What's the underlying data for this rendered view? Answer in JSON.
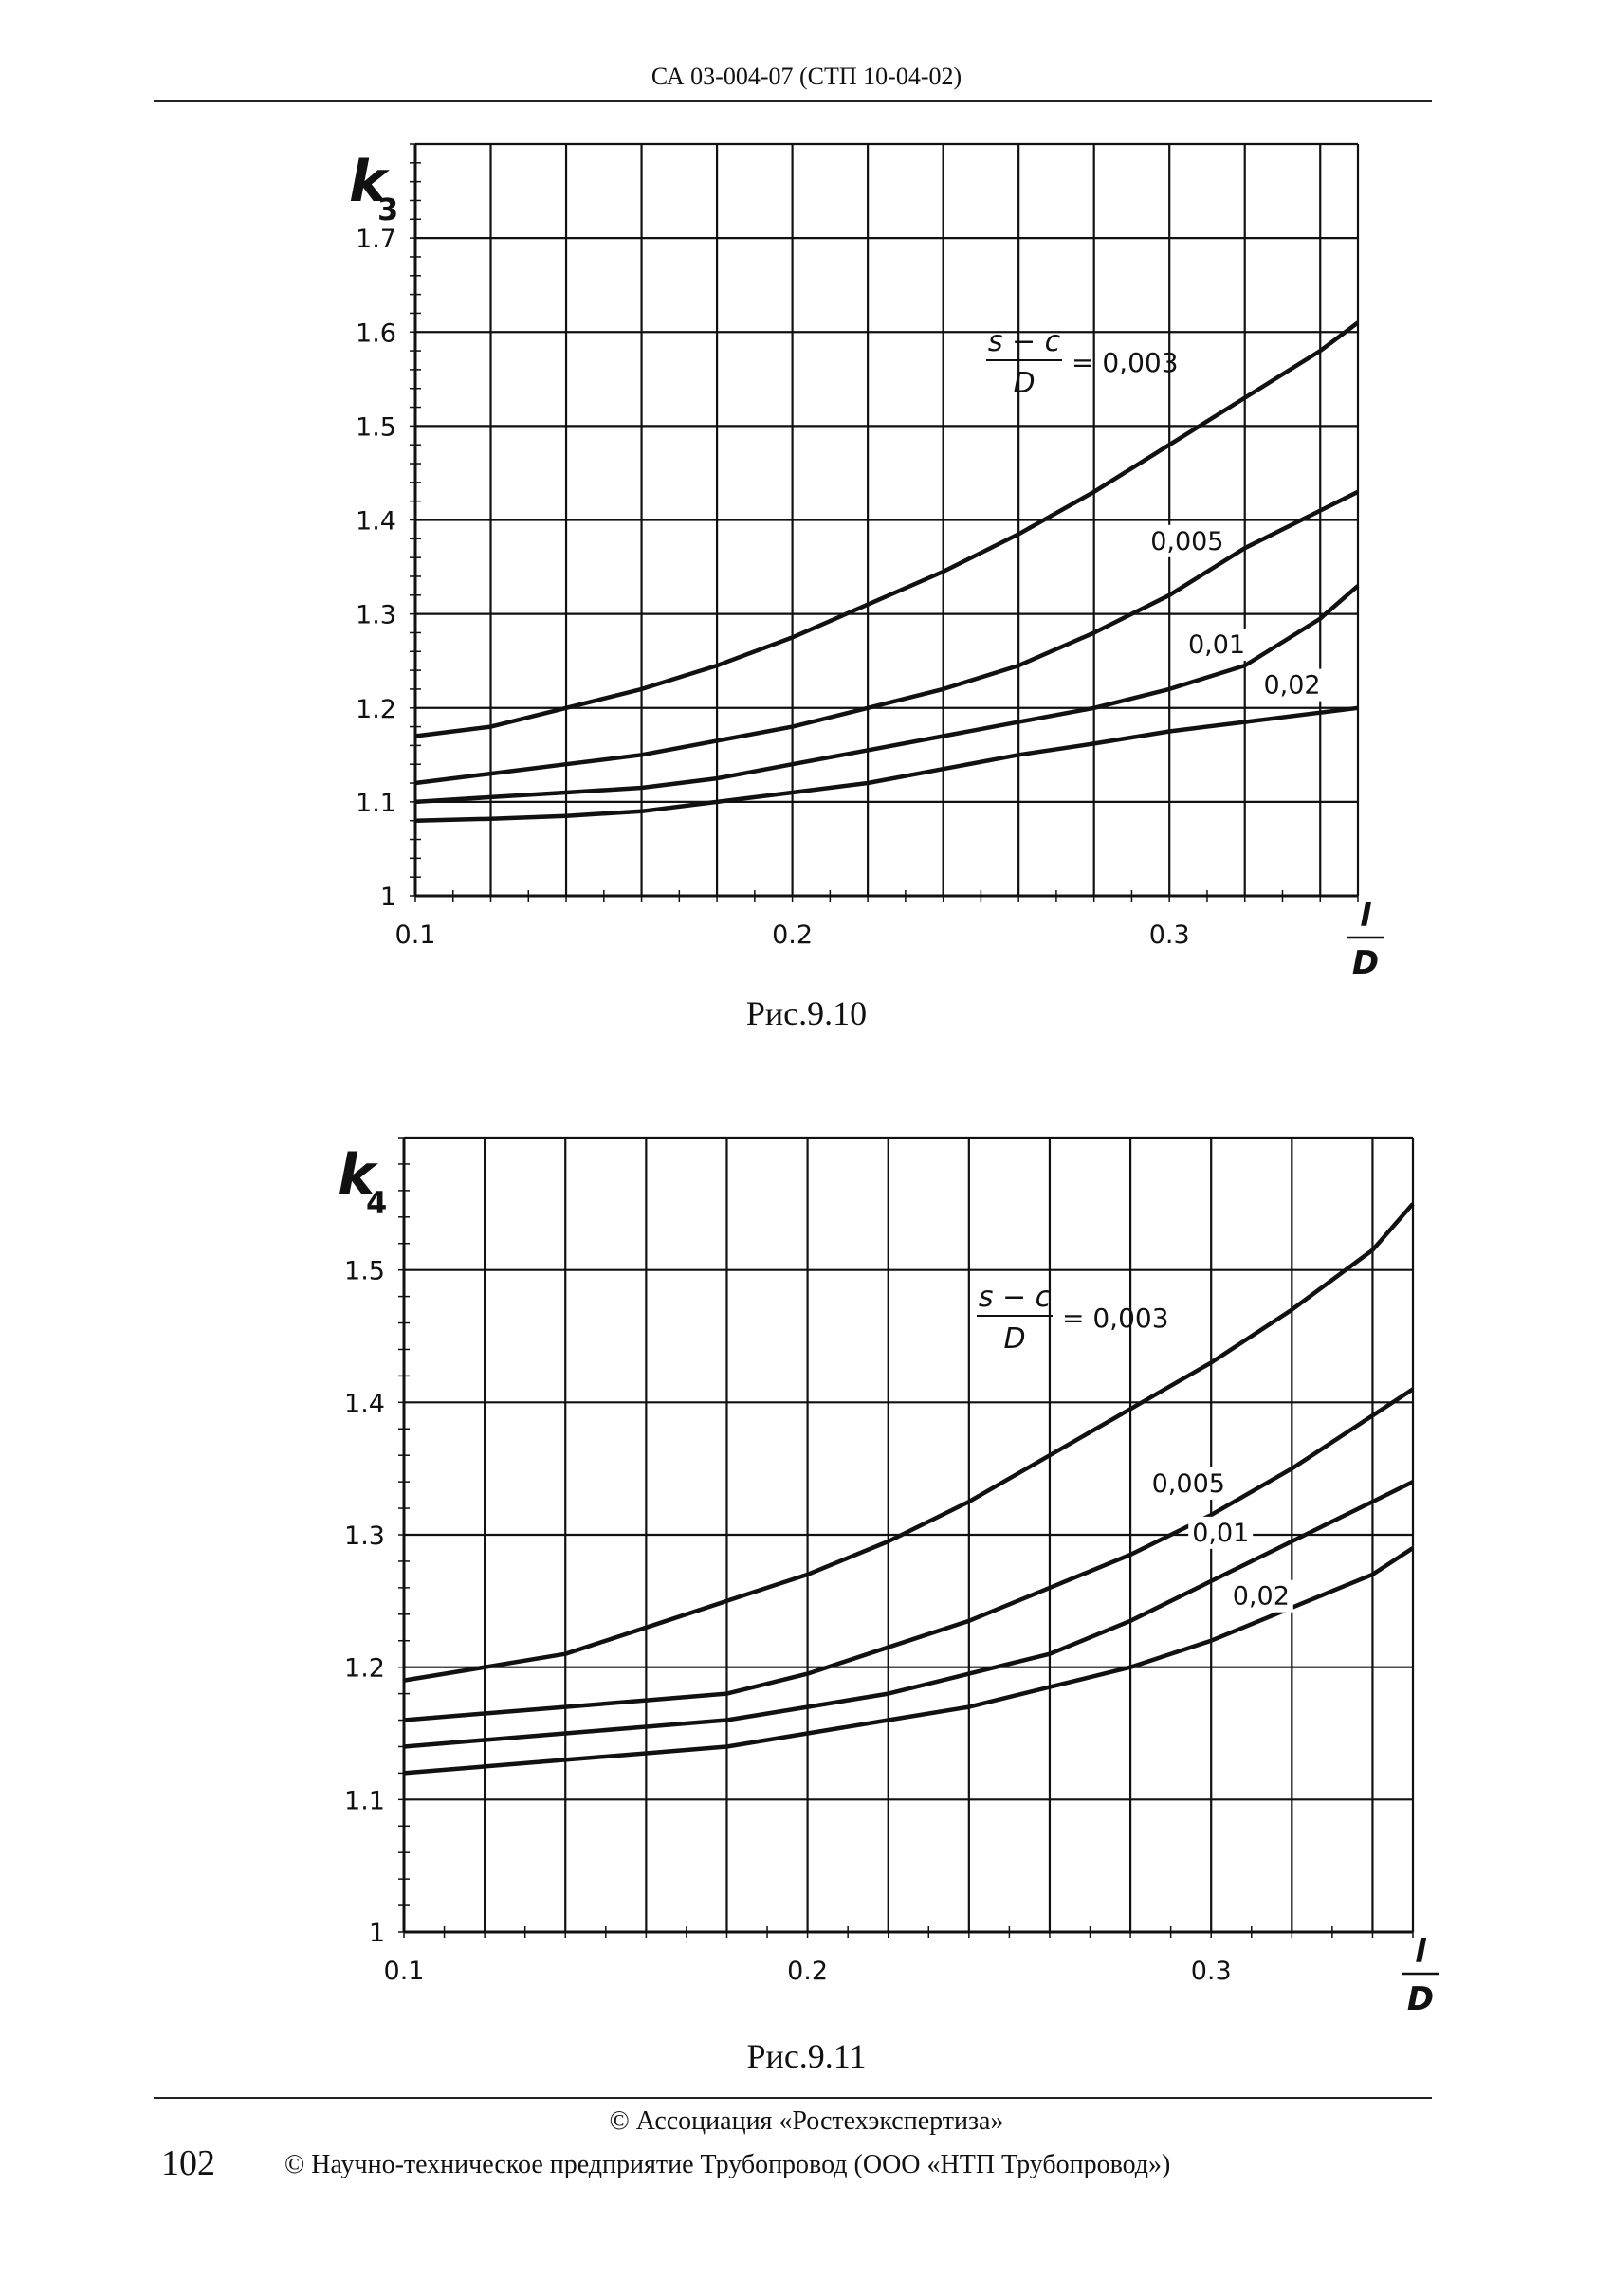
{
  "header": {
    "doc_code": "СА 03-004-07 (СТП 10-04-02)"
  },
  "footer": {
    "line1": "© Ассоциация «Ростехэкспертиза»",
    "line2": "© Научно-техническое предприятие Трубопровод (ООО «НТП Трубопровод»)",
    "page_number": "102"
  },
  "charts": [
    {
      "caption": "Рис.9.10"
    },
    {
      "caption": "Рис.9.11"
    }
  ],
  "chart_data": [
    {
      "type": "line",
      "ylabel_main": "k",
      "ylabel_sub": "3",
      "xlabel_num": "l",
      "xlabel_den": "D",
      "param_num": "s − c",
      "param_den": "D",
      "param_eq": "= 0,003",
      "xlim": [
        0.1,
        0.35
      ],
      "ylim": [
        1.0,
        1.8
      ],
      "xticks": [
        "0.1",
        "0.2",
        "0.3"
      ],
      "xtick_values": [
        0.1,
        0.2,
        0.3
      ],
      "yticks": [
        "1",
        "1.1",
        "1.2",
        "1.3",
        "1.4",
        "1.5",
        "1.6",
        "1.7"
      ],
      "ytick_values": [
        1.0,
        1.1,
        1.2,
        1.3,
        1.4,
        1.5,
        1.6,
        1.7
      ],
      "grid": true,
      "x": [
        0.1,
        0.12,
        0.14,
        0.16,
        0.18,
        0.2,
        0.22,
        0.24,
        0.26,
        0.28,
        0.3,
        0.32,
        0.34,
        0.35
      ],
      "series": [
        {
          "name": "0,003",
          "values": [
            1.17,
            1.18,
            1.2,
            1.22,
            1.245,
            1.275,
            1.31,
            1.345,
            1.385,
            1.43,
            1.48,
            1.53,
            1.58,
            1.61
          ]
        },
        {
          "name": "0,005",
          "values": [
            1.12,
            1.13,
            1.14,
            1.15,
            1.165,
            1.18,
            1.2,
            1.22,
            1.245,
            1.28,
            1.32,
            1.37,
            1.41,
            1.43
          ]
        },
        {
          "name": "0,01",
          "values": [
            1.1,
            1.105,
            1.11,
            1.115,
            1.125,
            1.14,
            1.155,
            1.17,
            1.185,
            1.2,
            1.22,
            1.245,
            1.295,
            1.33
          ]
        },
        {
          "name": "0,02",
          "values": [
            1.08,
            1.082,
            1.085,
            1.09,
            1.1,
            1.11,
            1.12,
            1.135,
            1.15,
            1.162,
            1.175,
            1.185,
            1.195,
            1.2
          ]
        }
      ]
    },
    {
      "type": "line",
      "ylabel_main": "k",
      "ylabel_sub": "4",
      "xlabel_num": "l",
      "xlabel_den": "D",
      "param_num": "s − c",
      "param_den": "D",
      "param_eq": "= 0,003",
      "xlim": [
        0.1,
        0.35
      ],
      "ylim": [
        1.0,
        1.6
      ],
      "xticks": [
        "0.1",
        "0.2",
        "0.3"
      ],
      "xtick_values": [
        0.1,
        0.2,
        0.3
      ],
      "yticks": [
        "1",
        "1.1",
        "1.2",
        "1.3",
        "1.4",
        "1.5"
      ],
      "ytick_values": [
        1.0,
        1.1,
        1.2,
        1.3,
        1.4,
        1.5
      ],
      "grid": true,
      "x": [
        0.1,
        0.12,
        0.14,
        0.16,
        0.18,
        0.2,
        0.22,
        0.24,
        0.26,
        0.28,
        0.3,
        0.32,
        0.34,
        0.35
      ],
      "series": [
        {
          "name": "0,003",
          "values": [
            1.19,
            1.2,
            1.21,
            1.23,
            1.25,
            1.27,
            1.295,
            1.325,
            1.36,
            1.395,
            1.43,
            1.47,
            1.515,
            1.55
          ]
        },
        {
          "name": "0,005",
          "values": [
            1.16,
            1.165,
            1.17,
            1.175,
            1.18,
            1.195,
            1.215,
            1.235,
            1.26,
            1.285,
            1.315,
            1.35,
            1.39,
            1.41
          ]
        },
        {
          "name": "0,01",
          "values": [
            1.14,
            1.145,
            1.15,
            1.155,
            1.16,
            1.17,
            1.18,
            1.195,
            1.21,
            1.235,
            1.265,
            1.295,
            1.325,
            1.34
          ]
        },
        {
          "name": "0,02",
          "values": [
            1.12,
            1.125,
            1.13,
            1.135,
            1.14,
            1.15,
            1.16,
            1.17,
            1.185,
            1.2,
            1.22,
            1.245,
            1.27,
            1.29
          ]
        }
      ]
    }
  ]
}
